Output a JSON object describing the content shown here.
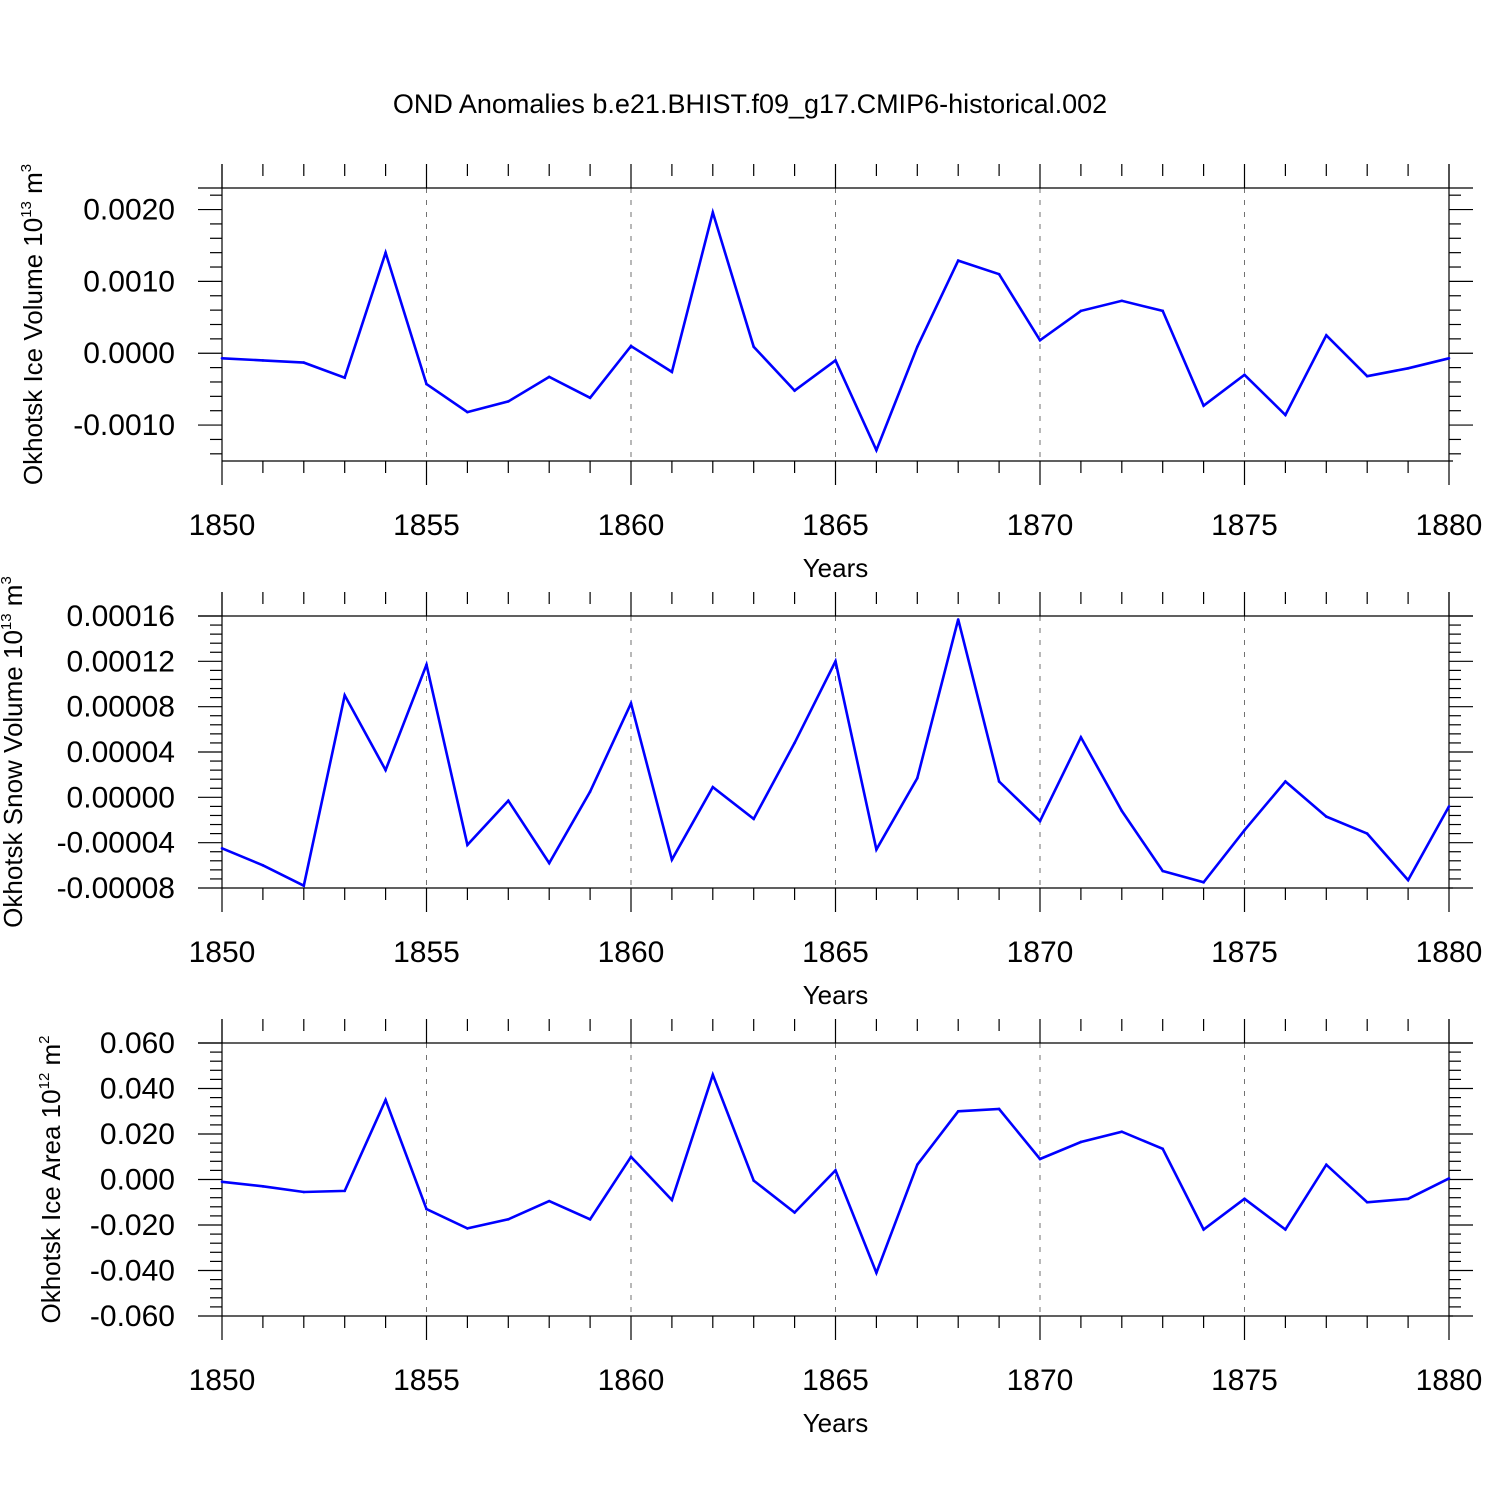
{
  "chart_title": "OND Anomalies b.e21.BHIST.f09_g17.CMIP6-historical.002",
  "colors": {
    "series": "#0000ff",
    "axis": "#000000",
    "grid": "#000000"
  },
  "chart_data": [
    {
      "type": "line",
      "title": "OND Anomalies b.e21.BHIST.f09_g17.CMIP6-historical.002",
      "xlabel": "Years",
      "ylabel": {
        "text": "Okhotsk Ice Volume 10",
        "exp": "13",
        "unit": " m",
        "unit_exp": "3"
      },
      "xlim": [
        1850,
        1880
      ],
      "ylim": [
        -0.0015,
        0.0023
      ],
      "xticks": [
        1850,
        1855,
        1860,
        1865,
        1870,
        1875,
        1880
      ],
      "xtick_labels": [
        "1850",
        "1855",
        "1860",
        "1865",
        "1870",
        "1875",
        "1880"
      ],
      "yticks": [
        -0.001,
        0,
        0.001,
        0.002
      ],
      "ytick_labels": [
        "-0.0010",
        "0.0000",
        "0.0010",
        "0.0020"
      ],
      "x": [
        1850,
        1851,
        1852,
        1853,
        1854,
        1855,
        1856,
        1857,
        1858,
        1859,
        1860,
        1861,
        1862,
        1863,
        1864,
        1865,
        1866,
        1867,
        1868,
        1869,
        1870,
        1871,
        1872,
        1873,
        1874,
        1875,
        1876,
        1877,
        1878,
        1879,
        1880
      ],
      "values": [
        -7e-05,
        -0.0001,
        -0.00013,
        -0.00034,
        0.0014,
        -0.00043,
        -0.00082,
        -0.00067,
        -0.00033,
        -0.00062,
        0.0001,
        -0.00026,
        0.00196,
        9e-05,
        -0.00052,
        -0.0001,
        -0.00135,
        9e-05,
        0.00129,
        0.0011,
        0.00018,
        0.00059,
        0.00073,
        0.00059,
        -0.00073,
        -0.0003,
        -0.00086,
        0.00025,
        -0.00032,
        -0.00021,
        -7e-05
      ]
    },
    {
      "type": "line",
      "xlabel": "Years",
      "ylabel": {
        "text": "Okhotsk Snow Volume 10",
        "exp": "13",
        "unit": " m",
        "unit_exp": "3"
      },
      "xlim": [
        1850,
        1880
      ],
      "ylim": [
        -8e-05,
        0.00016
      ],
      "xticks": [
        1850,
        1855,
        1860,
        1865,
        1870,
        1875,
        1880
      ],
      "xtick_labels": [
        "1850",
        "1855",
        "1860",
        "1865",
        "1870",
        "1875",
        "1880"
      ],
      "yticks": [
        -8e-05,
        -4e-05,
        0,
        4e-05,
        8e-05,
        0.00012,
        0.00016
      ],
      "ytick_labels": [
        "-0.00008",
        "-0.00004",
        "0.00000",
        "0.00004",
        "0.00008",
        "0.00012",
        "0.00016"
      ],
      "x": [
        1850,
        1851,
        1852,
        1853,
        1854,
        1855,
        1856,
        1857,
        1858,
        1859,
        1860,
        1861,
        1862,
        1863,
        1864,
        1865,
        1866,
        1867,
        1868,
        1869,
        1870,
        1871,
        1872,
        1873,
        1874,
        1875,
        1876,
        1877,
        1878,
        1879,
        1880
      ],
      "values": [
        -4.5e-05,
        -6e-05,
        -7.8e-05,
        9e-05,
        2.4e-05,
        0.000117,
        -4.2e-05,
        -3e-06,
        -5.8e-05,
        5e-06,
        8.3e-05,
        -5.5e-05,
        9e-06,
        -1.9e-05,
        4.8e-05,
        0.00012,
        -4.6e-05,
        1.7e-05,
        0.000157,
        1.4e-05,
        -2.1e-05,
        5.3e-05,
        -1.2e-05,
        -6.5e-05,
        -7.5e-05,
        -2.9e-05,
        1.4e-05,
        -1.7e-05,
        -3.2e-05,
        -7.3e-05,
        -8e-06
      ]
    },
    {
      "type": "line",
      "xlabel": "Years",
      "ylabel": {
        "text": "Okhotsk Ice Area 10",
        "exp": "12",
        "unit": " m",
        "unit_exp": "2"
      },
      "xlim": [
        1850,
        1880
      ],
      "ylim": [
        -0.06,
        0.06
      ],
      "xticks": [
        1850,
        1855,
        1860,
        1865,
        1870,
        1875,
        1880
      ],
      "xtick_labels": [
        "1850",
        "1855",
        "1860",
        "1865",
        "1870",
        "1875",
        "1880"
      ],
      "yticks": [
        -0.06,
        -0.04,
        -0.02,
        0,
        0.02,
        0.04,
        0.06
      ],
      "ytick_labels": [
        "-0.060",
        "-0.040",
        "-0.020",
        "0.000",
        "0.020",
        "0.040",
        "0.060"
      ],
      "x": [
        1850,
        1851,
        1852,
        1853,
        1854,
        1855,
        1856,
        1857,
        1858,
        1859,
        1860,
        1861,
        1862,
        1863,
        1864,
        1865,
        1866,
        1867,
        1868,
        1869,
        1870,
        1871,
        1872,
        1873,
        1874,
        1875,
        1876,
        1877,
        1878,
        1879,
        1880
      ],
      "values": [
        -0.001,
        -0.003,
        -0.0055,
        -0.005,
        0.035,
        -0.013,
        -0.0215,
        -0.0175,
        -0.0095,
        -0.0175,
        0.01,
        -0.009,
        0.046,
        -0.0005,
        -0.0145,
        0.004,
        -0.041,
        0.0065,
        0.03,
        0.031,
        0.009,
        0.0165,
        0.021,
        0.0135,
        -0.022,
        -0.0085,
        -0.022,
        0.0065,
        -0.01,
        -0.0085,
        0.0005
      ]
    }
  ]
}
